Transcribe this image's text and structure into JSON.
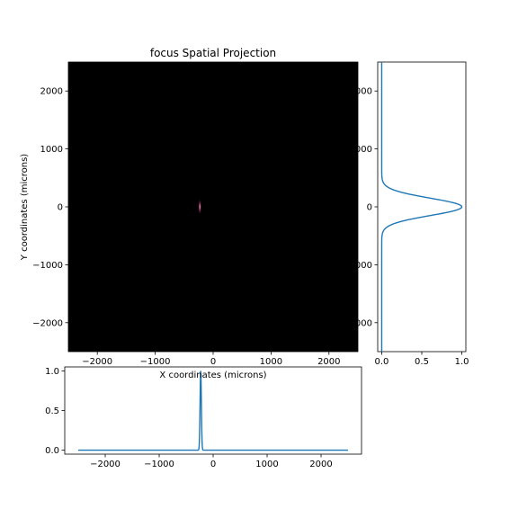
{
  "chart_data": [
    {
      "type": "heatmap",
      "title": "focus Spatial Projection",
      "xlabel": "X coordinates (microns)",
      "ylabel": "Y coordinates (microns)",
      "xlim": [
        -2500,
        2500
      ],
      "ylim": [
        -2500,
        2500
      ],
      "x_ticks": [
        -2000,
        -1000,
        0,
        1000,
        2000
      ],
      "x_tick_labels": [
        "−2000",
        "−1000",
        "0",
        "1000",
        "2000"
      ],
      "y_ticks": [
        -2000,
        -1000,
        0,
        1000,
        2000
      ],
      "y_tick_labels": [
        "−2000",
        "−1000",
        "0",
        "1000",
        "2000"
      ],
      "background_color": "#000000",
      "colormap": "magma",
      "hotspot": {
        "x": -230,
        "y": 0,
        "width_x": 20,
        "width_y": 300,
        "peak_color": "#fcfdbf",
        "mid_color": "#b73779"
      }
    },
    {
      "type": "line",
      "orientation": "vertical",
      "xlim": [
        -0.05,
        1.05
      ],
      "ylim": [
        -2500,
        2500
      ],
      "x_ticks": [
        0.0,
        0.5,
        1.0
      ],
      "x_tick_labels": [
        "0.0",
        "0.5",
        "1.0"
      ],
      "y_ticks": [
        -2000,
        -1000,
        0,
        1000,
        2000
      ],
      "y_tick_labels": [
        "000",
        "000",
        "0",
        "000",
        "000"
      ],
      "line_color": "#1f77b4",
      "profile": {
        "center": 0,
        "sigma": 150,
        "peak": 1.0,
        "range": [
          -2500,
          2500
        ]
      }
    },
    {
      "type": "line",
      "orientation": "horizontal",
      "xlim": [
        -2750,
        2750
      ],
      "ylim": [
        -0.05,
        1.05
      ],
      "x_ticks": [
        -2000,
        -1000,
        0,
        1000,
        2000
      ],
      "x_tick_labels": [
        "−2000",
        "−1000",
        "0",
        "1000",
        "2000"
      ],
      "y_ticks": [
        0.0,
        0.5,
        1.0
      ],
      "y_tick_labels": [
        "0.0",
        "0.5",
        "1.0"
      ],
      "line_color": "#1f77b4",
      "profile": {
        "center": -230,
        "sigma": 12,
        "peak": 1.0,
        "range": [
          -2500,
          2500
        ]
      }
    }
  ]
}
